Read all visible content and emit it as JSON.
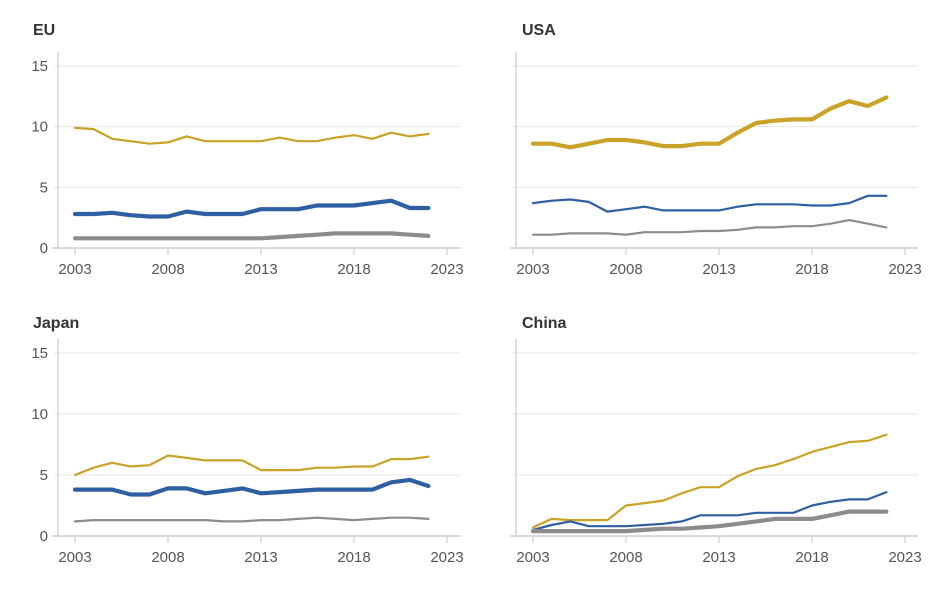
{
  "chart_data": [
    {
      "type": "line",
      "title": "EU",
      "xlabel": "",
      "ylabel": "",
      "xlim": [
        2003,
        2023
      ],
      "ylim": [
        0,
        15
      ],
      "xticks": [
        "2003",
        "2008",
        "2013",
        "2018",
        "2023"
      ],
      "yticks": [
        "0",
        "5",
        "10",
        "15"
      ],
      "grid": true,
      "x": [
        2003,
        2004,
        2005,
        2006,
        2007,
        2008,
        2009,
        2010,
        2011,
        2012,
        2013,
        2014,
        2015,
        2016,
        2017,
        2018,
        2019,
        2020,
        2021,
        2022
      ],
      "series": [
        {
          "name": "gold",
          "color": "#c9a227",
          "emphasis": false,
          "values": [
            9.9,
            9.8,
            9.0,
            8.8,
            8.6,
            8.7,
            9.2,
            8.8,
            8.8,
            8.8,
            8.8,
            9.1,
            8.8,
            8.8,
            9.1,
            9.3,
            9.0,
            9.5,
            9.2,
            9.4
          ]
        },
        {
          "name": "blue",
          "color": "#2e5fa3",
          "emphasis": true,
          "values": [
            2.8,
            2.8,
            2.9,
            2.7,
            2.6,
            2.6,
            3.0,
            2.8,
            2.8,
            2.8,
            3.2,
            3.2,
            3.2,
            3.5,
            3.5,
            3.5,
            3.7,
            3.9,
            3.3,
            3.3
          ]
        },
        {
          "name": "gray",
          "color": "#8c8c8c",
          "emphasis": true,
          "values": [
            0.8,
            0.8,
            0.8,
            0.8,
            0.8,
            0.8,
            0.8,
            0.8,
            0.8,
            0.8,
            0.8,
            0.9,
            1.0,
            1.1,
            1.2,
            1.2,
            1.2,
            1.2,
            1.1,
            1.0
          ]
        }
      ]
    },
    {
      "type": "line",
      "title": "USA",
      "xlabel": "",
      "ylabel": "",
      "xlim": [
        2003,
        2023
      ],
      "ylim": [
        0,
        15
      ],
      "xticks": [
        "2003",
        "2008",
        "2013",
        "2018",
        "2023"
      ],
      "yticks": [],
      "grid": true,
      "x": [
        2003,
        2004,
        2005,
        2006,
        2007,
        2008,
        2009,
        2010,
        2011,
        2012,
        2013,
        2014,
        2015,
        2016,
        2017,
        2018,
        2019,
        2020,
        2021,
        2022
      ],
      "series": [
        {
          "name": "gold",
          "color": "#c9a227",
          "emphasis": true,
          "values": [
            8.6,
            8.6,
            8.3,
            8.6,
            8.9,
            8.9,
            8.7,
            8.4,
            8.4,
            8.6,
            8.6,
            9.5,
            10.3,
            10.5,
            10.6,
            10.6,
            11.5,
            12.1,
            11.7,
            12.4
          ]
        },
        {
          "name": "blue",
          "color": "#2e5fa3",
          "emphasis": false,
          "values": [
            3.7,
            3.9,
            4.0,
            3.8,
            3.0,
            3.2,
            3.4,
            3.1,
            3.1,
            3.1,
            3.1,
            3.4,
            3.6,
            3.6,
            3.6,
            3.5,
            3.5,
            3.7,
            4.3,
            4.3
          ]
        },
        {
          "name": "gray",
          "color": "#8c8c8c",
          "emphasis": false,
          "values": [
            1.1,
            1.1,
            1.2,
            1.2,
            1.2,
            1.1,
            1.3,
            1.3,
            1.3,
            1.4,
            1.4,
            1.5,
            1.7,
            1.7,
            1.8,
            1.8,
            2.0,
            2.3,
            2.0,
            1.7
          ]
        }
      ]
    },
    {
      "type": "line",
      "title": "Japan",
      "xlabel": "",
      "ylabel": "",
      "xlim": [
        2003,
        2023
      ],
      "ylim": [
        0,
        15
      ],
      "xticks": [
        "2003",
        "2008",
        "2013",
        "2018",
        "2023"
      ],
      "yticks": [
        "0",
        "5",
        "10",
        "15"
      ],
      "grid": true,
      "x": [
        2003,
        2004,
        2005,
        2006,
        2007,
        2008,
        2009,
        2010,
        2011,
        2012,
        2013,
        2014,
        2015,
        2016,
        2017,
        2018,
        2019,
        2020,
        2021,
        2022
      ],
      "series": [
        {
          "name": "gold",
          "color": "#c9a227",
          "emphasis": false,
          "values": [
            5.0,
            5.6,
            6.0,
            5.7,
            5.8,
            6.6,
            6.4,
            6.2,
            6.2,
            6.2,
            5.4,
            5.4,
            5.4,
            5.6,
            5.6,
            5.7,
            5.7,
            6.3,
            6.3,
            6.5
          ]
        },
        {
          "name": "blue",
          "color": "#2e5fa3",
          "emphasis": true,
          "values": [
            3.8,
            3.8,
            3.8,
            3.4,
            3.4,
            3.9,
            3.9,
            3.5,
            3.7,
            3.9,
            3.5,
            3.6,
            3.7,
            3.8,
            3.8,
            3.8,
            3.8,
            4.4,
            4.6,
            4.1
          ]
        },
        {
          "name": "gray",
          "color": "#8c8c8c",
          "emphasis": false,
          "values": [
            1.2,
            1.3,
            1.3,
            1.3,
            1.3,
            1.3,
            1.3,
            1.3,
            1.2,
            1.2,
            1.3,
            1.3,
            1.4,
            1.5,
            1.4,
            1.3,
            1.4,
            1.5,
            1.5,
            1.4
          ]
        }
      ]
    },
    {
      "type": "line",
      "title": "China",
      "xlabel": "",
      "ylabel": "",
      "xlim": [
        2003,
        2023
      ],
      "ylim": [
        0,
        15
      ],
      "xticks": [
        "2003",
        "2008",
        "2013",
        "2018",
        "2023"
      ],
      "yticks": [],
      "grid": true,
      "x": [
        2003,
        2004,
        2005,
        2006,
        2007,
        2008,
        2009,
        2010,
        2011,
        2012,
        2013,
        2014,
        2015,
        2016,
        2017,
        2018,
        2019,
        2020,
        2021,
        2022
      ],
      "series": [
        {
          "name": "gold",
          "color": "#c9a227",
          "emphasis": false,
          "values": [
            0.7,
            1.4,
            1.3,
            1.3,
            1.3,
            2.5,
            2.7,
            2.9,
            3.5,
            4.0,
            4.0,
            4.9,
            5.5,
            5.8,
            6.3,
            6.9,
            7.3,
            7.7,
            7.8,
            8.3
          ]
        },
        {
          "name": "blue",
          "color": "#2e5fa3",
          "emphasis": false,
          "values": [
            0.5,
            0.9,
            1.2,
            0.8,
            0.8,
            0.8,
            0.9,
            1.0,
            1.2,
            1.7,
            1.7,
            1.7,
            1.9,
            1.9,
            1.9,
            2.5,
            2.8,
            3.0,
            3.0,
            3.6
          ]
        },
        {
          "name": "gray",
          "color": "#8c8c8c",
          "emphasis": true,
          "values": [
            0.4,
            0.4,
            0.4,
            0.4,
            0.4,
            0.4,
            0.5,
            0.6,
            0.6,
            0.7,
            0.8,
            1.0,
            1.2,
            1.4,
            1.4,
            1.4,
            1.7,
            2.0,
            2.0,
            2.0
          ]
        }
      ]
    }
  ]
}
